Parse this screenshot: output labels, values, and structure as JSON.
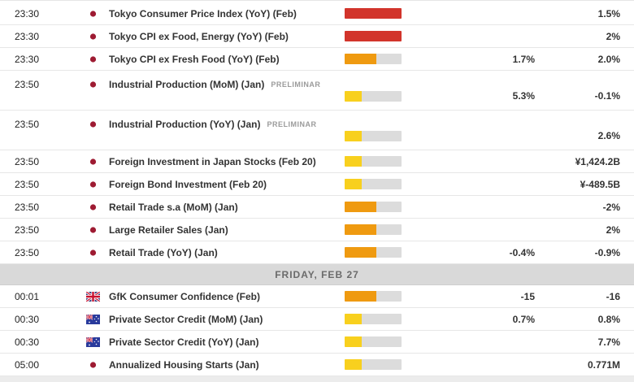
{
  "day_header": {
    "label": "FRIDAY, FEB 27"
  },
  "importance_levels": {
    "high": {
      "color": "#d2342b",
      "fill_pct": 100
    },
    "medium": {
      "color": "#ef9a10",
      "fill_pct": 56
    },
    "low": {
      "color": "#f8d01e",
      "fill_pct": 30
    }
  },
  "colors": {
    "bar_track": "#dcdcdc",
    "day_band": "#d9d9d9",
    "row_border": "#e7e7e7",
    "japan_flag_red": "#9e1b32",
    "uk_flag_blue": "#29337a",
    "uk_flag_red": "#c8102e",
    "australia_flag_blue": "#293a9c"
  },
  "rows": [
    {
      "kind": "event",
      "time": "23:30",
      "flag": "jp",
      "flag_name": "japan-flag-icon",
      "name": "Tokyo Consumer Price Index (YoY) (Feb)",
      "tag": "",
      "importance": "high",
      "forecast": "",
      "previous": "1.5%",
      "two_line": false
    },
    {
      "kind": "event",
      "time": "23:30",
      "flag": "jp",
      "flag_name": "japan-flag-icon",
      "name": "Tokyo CPI ex Food, Energy (YoY) (Feb)",
      "tag": "",
      "importance": "high",
      "forecast": "",
      "previous": "2%",
      "two_line": false
    },
    {
      "kind": "event",
      "time": "23:30",
      "flag": "jp",
      "flag_name": "japan-flag-icon",
      "name": "Tokyo CPI ex Fresh Food (YoY) (Feb)",
      "tag": "",
      "importance": "medium",
      "forecast": "1.7%",
      "previous": "2.0%",
      "two_line": false
    },
    {
      "kind": "event",
      "time": "23:50",
      "flag": "jp",
      "flag_name": "japan-flag-icon",
      "name": "Industrial Production (MoM) (Jan)",
      "tag": "PRELIMINAR",
      "importance": "low",
      "forecast": "5.3%",
      "previous": "-0.1%",
      "two_line": true
    },
    {
      "kind": "event",
      "time": "23:50",
      "flag": "jp",
      "flag_name": "japan-flag-icon",
      "name": "Industrial Production (YoY) (Jan)",
      "tag": "PRELIMINAR",
      "importance": "low",
      "forecast": "",
      "previous": "2.6%",
      "two_line": true
    },
    {
      "kind": "event",
      "time": "23:50",
      "flag": "jp",
      "flag_name": "japan-flag-icon",
      "name": "Foreign Investment in Japan Stocks (Feb 20)",
      "tag": "",
      "importance": "low",
      "forecast": "",
      "previous": "¥1,424.2B",
      "two_line": false
    },
    {
      "kind": "event",
      "time": "23:50",
      "flag": "jp",
      "flag_name": "japan-flag-icon",
      "name": "Foreign Bond Investment (Feb 20)",
      "tag": "",
      "importance": "low",
      "forecast": "",
      "previous": "¥-489.5B",
      "two_line": false
    },
    {
      "kind": "event",
      "time": "23:50",
      "flag": "jp",
      "flag_name": "japan-flag-icon",
      "name": "Retail Trade s.a (MoM) (Jan)",
      "tag": "",
      "importance": "medium",
      "forecast": "",
      "previous": "-2%",
      "two_line": false
    },
    {
      "kind": "event",
      "time": "23:50",
      "flag": "jp",
      "flag_name": "japan-flag-icon",
      "name": "Large Retailer Sales (Jan)",
      "tag": "",
      "importance": "medium",
      "forecast": "",
      "previous": "2%",
      "two_line": false
    },
    {
      "kind": "event",
      "time": "23:50",
      "flag": "jp",
      "flag_name": "japan-flag-icon",
      "name": "Retail Trade (YoY) (Jan)",
      "tag": "",
      "importance": "medium",
      "forecast": "-0.4%",
      "previous": "-0.9%",
      "two_line": false
    },
    {
      "kind": "day",
      "label": "FRIDAY, FEB 27"
    },
    {
      "kind": "event",
      "time": "00:01",
      "flag": "gb",
      "flag_name": "uk-flag-icon",
      "name": "GfK Consumer Confidence (Feb)",
      "tag": "",
      "importance": "medium",
      "forecast": "-15",
      "previous": "-16",
      "two_line": false
    },
    {
      "kind": "event",
      "time": "00:30",
      "flag": "au",
      "flag_name": "australia-flag-icon",
      "name": "Private Sector Credit (MoM) (Jan)",
      "tag": "",
      "importance": "low",
      "forecast": "0.7%",
      "previous": "0.8%",
      "two_line": false
    },
    {
      "kind": "event",
      "time": "00:30",
      "flag": "au",
      "flag_name": "australia-flag-icon",
      "name": "Private Sector Credit (YoY) (Jan)",
      "tag": "",
      "importance": "low",
      "forecast": "",
      "previous": "7.7%",
      "two_line": false
    },
    {
      "kind": "event",
      "time": "05:00",
      "flag": "jp",
      "flag_name": "japan-flag-icon",
      "name": "Annualized Housing Starts (Jan)",
      "tag": "",
      "importance": "low",
      "forecast": "",
      "previous": "0.771M",
      "two_line": false
    }
  ]
}
